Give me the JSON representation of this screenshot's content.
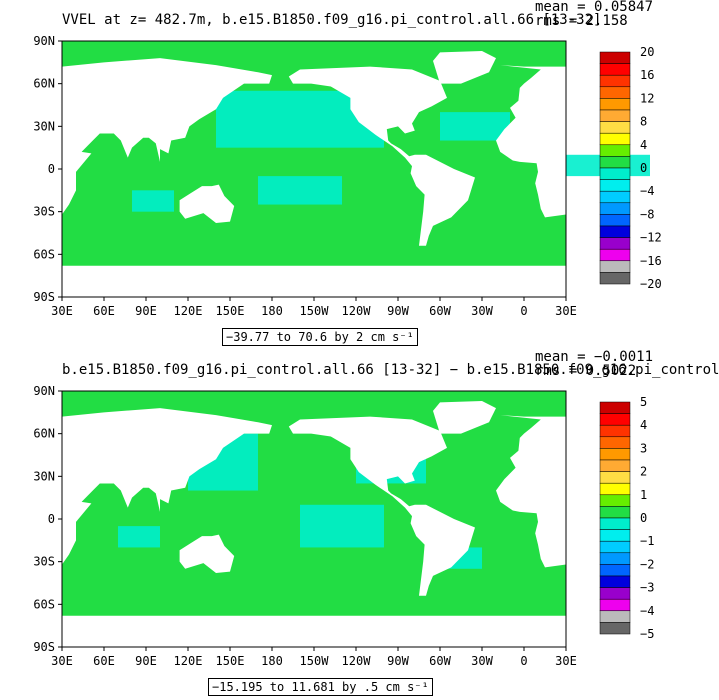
{
  "panels": [
    {
      "title": "VVEL at z= 482.7m, b.e15.B1850.f09_g16.pi_control.all.66 [13-32]",
      "mean": "mean = 0.05847",
      "rms": "rms = 2.158",
      "range_text": "−39.77 to 70.6 by 2 cm s⁻¹",
      "colorbar_labels": [
        "20",
        "16",
        "12",
        "8",
        "4",
        "0",
        "−4",
        "−8",
        "−12",
        "−16",
        "−20"
      ]
    },
    {
      "title": "b.e15.B1850.f09_g16.pi_control.all.66 [13-32] − b.e15.B1850.f09_g16.pi_control",
      "mean": "mean = −0.0011",
      "rms": "rms = 0.5022",
      "range_text": "−15.195 to 11.681 by .5 cm s⁻¹",
      "colorbar_labels": [
        "5",
        "4",
        "3",
        "2",
        "1",
        "0",
        "−1",
        "−2",
        "−3",
        "−4",
        "−5"
      ]
    }
  ],
  "lat_labels": [
    "90N",
    "60N",
    "30N",
    "0",
    "30S",
    "60S",
    "90S"
  ],
  "lon_labels": [
    "30E",
    "60E",
    "90E",
    "120E",
    "150E",
    "180",
    "150W",
    "120W",
    "90W",
    "60W",
    "30W",
    "0",
    "30E"
  ],
  "colors": {
    "ocean_main": "#22dd44",
    "ocean_alt": "#00eecc",
    "land": "#ffffff",
    "palette": [
      "#666666",
      "#bbbbbb",
      "#ee00ee",
      "#9900cc",
      "#0000dd",
      "#0066ff",
      "#0099ff",
      "#00ccff",
      "#00eeee",
      "#00eecc",
      "#22dd44",
      "#66ee00",
      "#ffff00",
      "#ffdd44",
      "#ffaa33",
      "#ff9900",
      "#ff6600",
      "#ff3300",
      "#ff0000",
      "#cc0000"
    ]
  }
}
